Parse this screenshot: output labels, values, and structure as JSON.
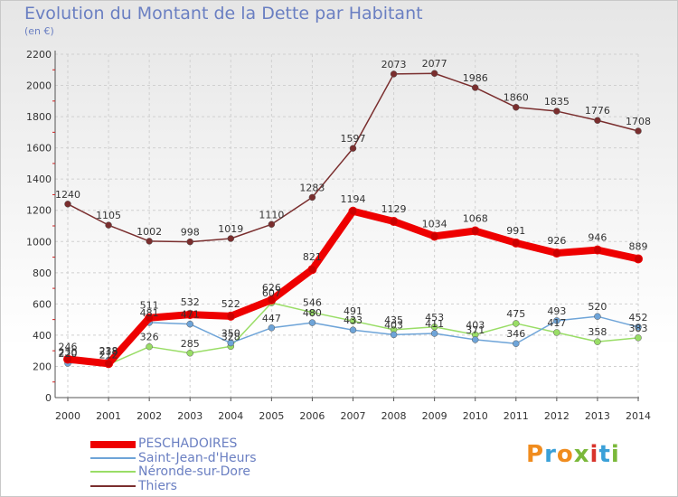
{
  "header": {
    "title": "Evolution du Montant de la Dette par Habitant",
    "subtitle": "(en €)"
  },
  "logo": {
    "text": "Proxiti",
    "colors": [
      "#f08c1e",
      "#3aa0d8",
      "#f08c1e",
      "#7ab83a",
      "#d8342c",
      "#3aa0d8",
      "#7ab83a"
    ]
  },
  "chart_data": {
    "type": "line",
    "title": "Evolution du Montant de la Dette par Habitant",
    "subtitle": "(en €)",
    "xlabel": "",
    "ylabel": "",
    "ylim": [
      0,
      2200
    ],
    "yticks": [
      0,
      200,
      400,
      600,
      800,
      1000,
      1200,
      1400,
      1600,
      1800,
      2000,
      2200
    ],
    "x": [
      "2000",
      "2001",
      "2002",
      "2003",
      "2004",
      "2005",
      "2006",
      "2007",
      "2008",
      "2009",
      "2010",
      "2011",
      "2012",
      "2013",
      "2014"
    ],
    "grid": true,
    "legend_position": "bottom-left",
    "series": [
      {
        "name": "PESCHADOIRES",
        "color": "#ee0000",
        "values": [
          246,
          218,
          511,
          532,
          522,
          626,
          821,
          1194,
          1129,
          1034,
          1068,
          991,
          926,
          946,
          889
        ],
        "labels": [
          "246",
          "218",
          "511",
          "532",
          "522",
          "626",
          "821",
          "1194",
          "1129",
          "1034",
          "1068",
          "991",
          "926",
          "946",
          "889"
        ]
      },
      {
        "name": "Saint-Jean-d'Heurs",
        "color": "#6ea4d8",
        "values": [
          220,
          238,
          481,
          471,
          350,
          447,
          480,
          433,
          403,
          411,
          371,
          346,
          493,
          520,
          452
        ],
        "labels": [
          "220",
          "238",
          "481",
          "471",
          "350",
          "447",
          "480",
          "433",
          "403",
          "411",
          "371",
          "346",
          "493",
          "520",
          "452"
        ]
      },
      {
        "name": "Néronde-sur-Dore",
        "color": "#99dd66",
        "values": [
          230,
          212,
          326,
          285,
          328,
          607,
          546,
          491,
          435,
          453,
          403,
          475,
          417,
          358,
          383
        ],
        "labels": [
          "230",
          "212",
          "326",
          "285",
          "328",
          "607",
          "546",
          "491",
          "435",
          "453",
          "403",
          "475",
          "417",
          "358",
          "383"
        ]
      },
      {
        "name": "Thiers",
        "color": "#7a2e2e",
        "values": [
          1240,
          1105,
          1002,
          998,
          1019,
          1110,
          1283,
          1597,
          2073,
          2077,
          1986,
          1860,
          1835,
          1776,
          1708
        ],
        "labels": [
          "1240",
          "1105",
          "1002",
          "998",
          "1019",
          "1110",
          "1283",
          "1597",
          "2073",
          "2077",
          "1986",
          "1860",
          "1835",
          "1776",
          "1708"
        ]
      }
    ]
  }
}
